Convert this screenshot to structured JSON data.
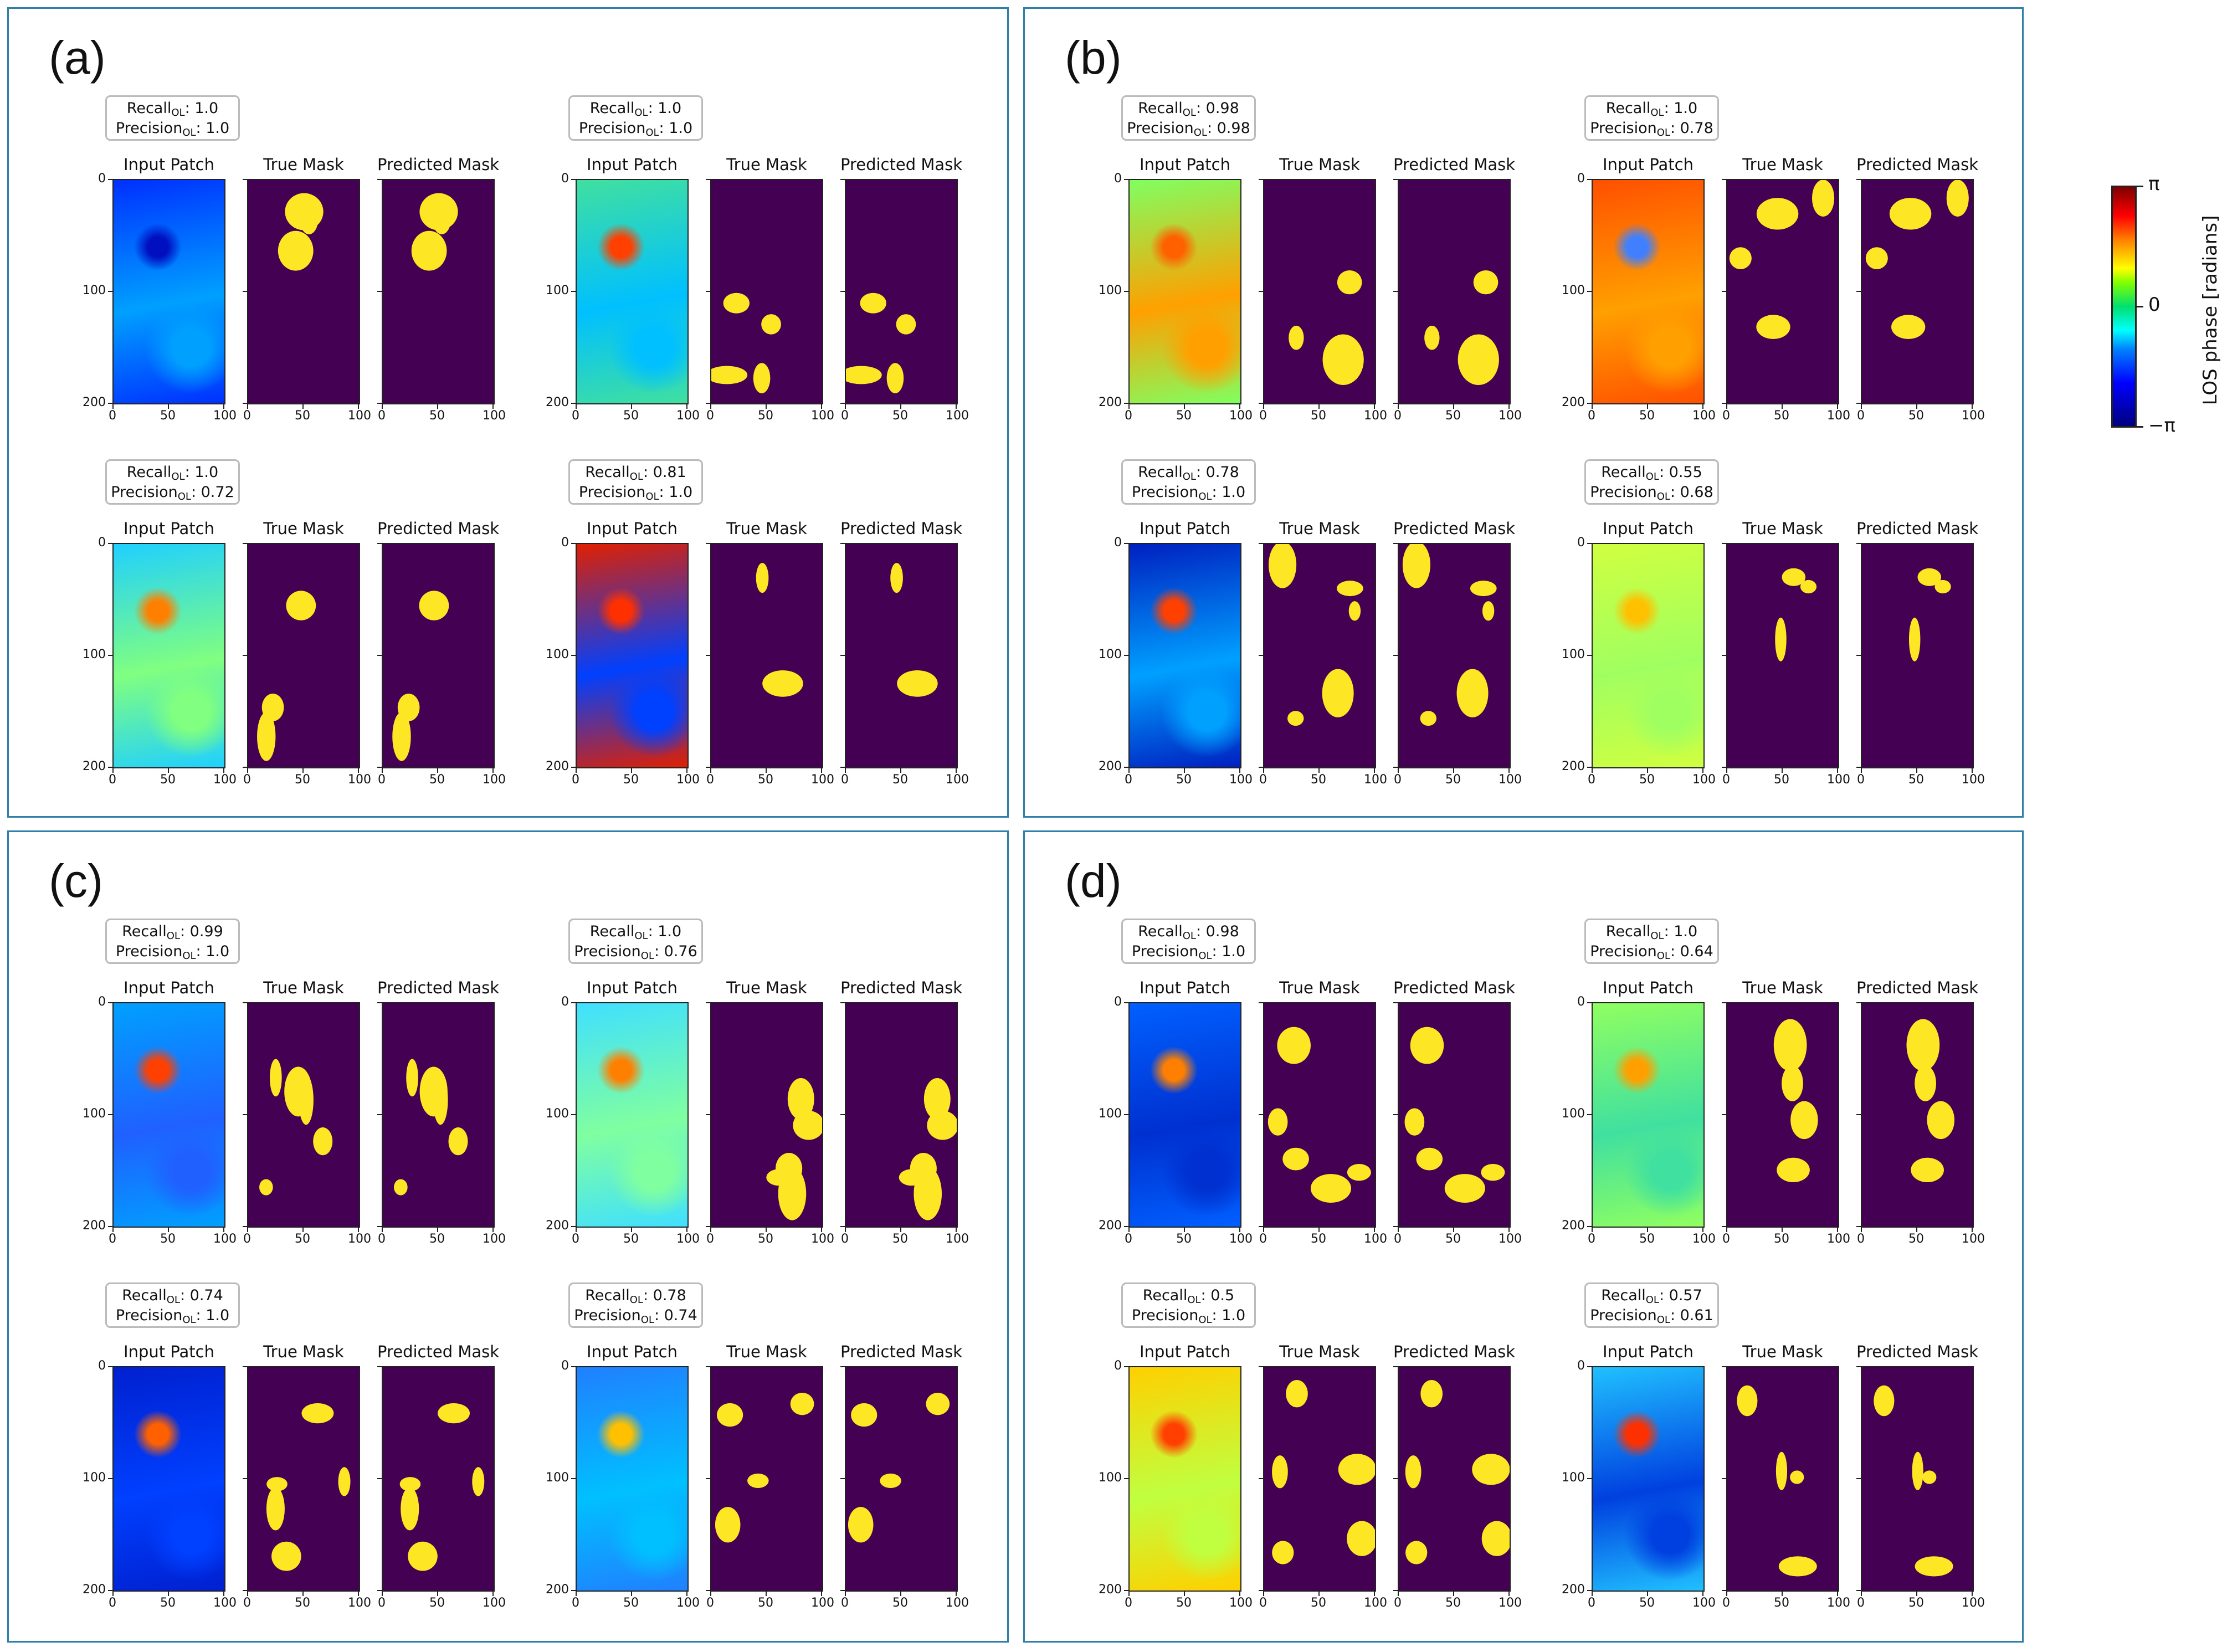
{
  "metric_labels": {
    "recall": "Recall",
    "precision": "Precision",
    "subscript": "OL"
  },
  "plot_titles": {
    "input": "Input Patch",
    "true": "True Mask",
    "pred": "Predicted Mask"
  },
  "y_ticks": [
    "0",
    "100",
    "200"
  ],
  "x_ticks": [
    "0",
    "50",
    "100"
  ],
  "colorbar": {
    "label": "LOS phase [radians]",
    "ticks": [
      "π",
      "0",
      "−π"
    ],
    "colormap": "jet"
  },
  "mask_colors": {
    "background": "#440154",
    "foreground": "#fde725"
  },
  "panel_border_color": "#2f7fa8",
  "panels": [
    {
      "label": "(a)",
      "patches": [
        {
          "recall": "1.0",
          "precision": "1.0"
        },
        {
          "recall": "1.0",
          "precision": "1.0"
        },
        {
          "recall": "1.0",
          "precision": "0.72"
        },
        {
          "recall": "0.81",
          "precision": "1.0"
        }
      ]
    },
    {
      "label": "(b)",
      "patches": [
        {
          "recall": "0.98",
          "precision": "0.98"
        },
        {
          "recall": "1.0",
          "precision": "0.78"
        },
        {
          "recall": "0.78",
          "precision": "1.0"
        },
        {
          "recall": "0.55",
          "precision": "0.68"
        }
      ]
    },
    {
      "label": "(c)",
      "patches": [
        {
          "recall": "0.99",
          "precision": "1.0"
        },
        {
          "recall": "1.0",
          "precision": "0.76"
        },
        {
          "recall": "0.74",
          "precision": "1.0"
        },
        {
          "recall": "0.78",
          "precision": "0.74"
        }
      ]
    },
    {
      "label": "(d)",
      "patches": [
        {
          "recall": "0.98",
          "precision": "1.0"
        },
        {
          "recall": "1.0",
          "precision": "0.64"
        },
        {
          "recall": "0.5",
          "precision": "1.0"
        },
        {
          "recall": "0.57",
          "precision": "0.61"
        }
      ]
    }
  ]
}
